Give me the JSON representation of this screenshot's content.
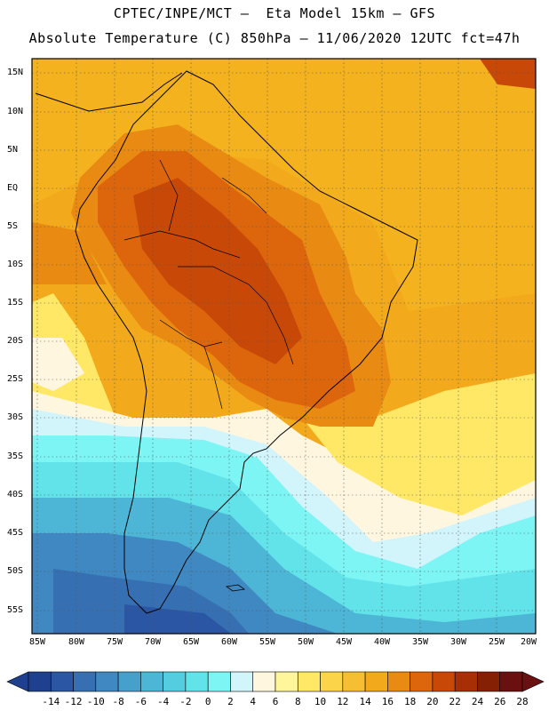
{
  "header": {
    "line1": "CPTEC/INPE/MCT –  Eta Model 15km – GFS",
    "line2": "Absolute Temperature (C) 850hPa – 11/06/2020 12UTC fct=47h"
  },
  "map": {
    "lat_labels": [
      "15N",
      "10N",
      "5N",
      "EQ",
      "5S",
      "10S",
      "15S",
      "20S",
      "25S",
      "30S",
      "35S",
      "40S",
      "45S",
      "50S",
      "55S"
    ],
    "lon_labels": [
      "85W",
      "80W",
      "75W",
      "70W",
      "65W",
      "60W",
      "55W",
      "50W",
      "45W",
      "40W",
      "35W",
      "30W",
      "25W",
      "20W"
    ]
  },
  "colorbar": {
    "labels": [
      "-14",
      "-12",
      "-10",
      "-8",
      "-6",
      "-4",
      "-2",
      "0",
      "2",
      "4",
      "6",
      "8",
      "10",
      "12",
      "14",
      "16",
      "18",
      "20",
      "22",
      "24",
      "26",
      "28"
    ],
    "colors": [
      "#1f3f8f",
      "#2a56a3",
      "#3670b3",
      "#3f88c2",
      "#46a0cc",
      "#4db6d6",
      "#55cde0",
      "#62e3ea",
      "#7df5f5",
      "#d2f4fb",
      "#fff6e0",
      "#fff59a",
      "#ffe866",
      "#fbd44a",
      "#f6bf33",
      "#f2aa1c",
      "#e98a12",
      "#dd660c",
      "#c84808",
      "#a82f05",
      "#852004",
      "#6a1010"
    ]
  }
}
